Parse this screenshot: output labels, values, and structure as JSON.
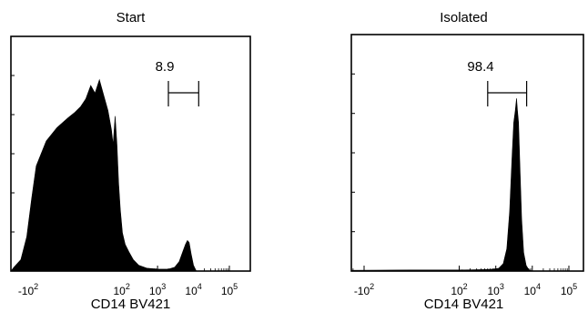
{
  "chart_data": [
    {
      "type": "area",
      "title": "Start",
      "xlabel": "CD14 BV421",
      "ylabel": "",
      "x_scale": "biexponential",
      "x_ticks": [
        {
          "value": -100,
          "base": "-10",
          "exp": "2"
        },
        {
          "value": 100,
          "base": "10",
          "exp": "2"
        },
        {
          "value": 1000,
          "base": "10",
          "exp": "3"
        },
        {
          "value": 10000,
          "base": "10",
          "exp": "4"
        },
        {
          "value": 100000,
          "base": "10",
          "exp": "5"
        }
      ],
      "gate": {
        "label": "8.9",
        "x_from": 2000,
        "x_to": 14000
      },
      "series": [
        {
          "values": [
            {
              "x": -400,
              "y": 0.0
            },
            {
              "x": -250,
              "y": 0.02
            },
            {
              "x": -160,
              "y": 0.06
            },
            {
              "x": -110,
              "y": 0.18
            },
            {
              "x": -80,
              "y": 0.38
            },
            {
              "x": -60,
              "y": 0.55
            },
            {
              "x": -40,
              "y": 0.68
            },
            {
              "x": -25,
              "y": 0.75
            },
            {
              "x": -10,
              "y": 0.8
            },
            {
              "x": 0,
              "y": 0.83
            },
            {
              "x": 8,
              "y": 0.86
            },
            {
              "x": 15,
              "y": 0.9
            },
            {
              "x": 22,
              "y": 0.97
            },
            {
              "x": 28,
              "y": 0.93
            },
            {
              "x": 34,
              "y": 1.0
            },
            {
              "x": 40,
              "y": 0.92
            },
            {
              "x": 46,
              "y": 0.84
            },
            {
              "x": 52,
              "y": 0.74
            },
            {
              "x": 58,
              "y": 0.66
            },
            {
              "x": 66,
              "y": 0.81
            },
            {
              "x": 74,
              "y": 0.66
            },
            {
              "x": 82,
              "y": 0.46
            },
            {
              "x": 92,
              "y": 0.32
            },
            {
              "x": 105,
              "y": 0.2
            },
            {
              "x": 125,
              "y": 0.14
            },
            {
              "x": 160,
              "y": 0.1
            },
            {
              "x": 210,
              "y": 0.06
            },
            {
              "x": 300,
              "y": 0.03
            },
            {
              "x": 500,
              "y": 0.015
            },
            {
              "x": 1000,
              "y": 0.01
            },
            {
              "x": 2000,
              "y": 0.01
            },
            {
              "x": 3000,
              "y": 0.02
            },
            {
              "x": 4000,
              "y": 0.05
            },
            {
              "x": 5000,
              "y": 0.1
            },
            {
              "x": 6000,
              "y": 0.14
            },
            {
              "x": 6800,
              "y": 0.16
            },
            {
              "x": 7600,
              "y": 0.15
            },
            {
              "x": 8600,
              "y": 0.09
            },
            {
              "x": 10000,
              "y": 0.03
            },
            {
              "x": 12000,
              "y": 0.0
            },
            {
              "x": 200000,
              "y": 0.0
            }
          ]
        }
      ]
    },
    {
      "type": "area",
      "title": "Isolated",
      "xlabel": "CD14 BV421",
      "ylabel": "",
      "x_scale": "biexponential",
      "x_ticks": [
        {
          "value": -100,
          "base": "-10",
          "exp": "2"
        },
        {
          "value": 100,
          "base": "10",
          "exp": "2"
        },
        {
          "value": 1000,
          "base": "10",
          "exp": "3"
        },
        {
          "value": 10000,
          "base": "10",
          "exp": "4"
        },
        {
          "value": 100000,
          "base": "10",
          "exp": "5"
        }
      ],
      "gate": {
        "label": "98.4",
        "x_from": 600,
        "x_to": 7000
      },
      "series": [
        {
          "values": [
            {
              "x": -400,
              "y": 0.0
            },
            {
              "x": -250,
              "y": 0.004
            },
            {
              "x": 0,
              "y": 0.006
            },
            {
              "x": 100,
              "y": 0.006
            },
            {
              "x": 400,
              "y": 0.008
            },
            {
              "x": 800,
              "y": 0.01
            },
            {
              "x": 1200,
              "y": 0.015
            },
            {
              "x": 1600,
              "y": 0.04
            },
            {
              "x": 2000,
              "y": 0.12
            },
            {
              "x": 2400,
              "y": 0.32
            },
            {
              "x": 2800,
              "y": 0.62
            },
            {
              "x": 3100,
              "y": 0.8
            },
            {
              "x": 3400,
              "y": 0.86
            },
            {
              "x": 3700,
              "y": 0.93
            },
            {
              "x": 3900,
              "y": 0.87
            },
            {
              "x": 4200,
              "y": 0.8
            },
            {
              "x": 4600,
              "y": 0.55
            },
            {
              "x": 5100,
              "y": 0.28
            },
            {
              "x": 5800,
              "y": 0.1
            },
            {
              "x": 6800,
              "y": 0.03
            },
            {
              "x": 8000,
              "y": 0.008
            },
            {
              "x": 10000,
              "y": 0.0
            },
            {
              "x": 200000,
              "y": 0.0
            }
          ]
        }
      ]
    }
  ]
}
